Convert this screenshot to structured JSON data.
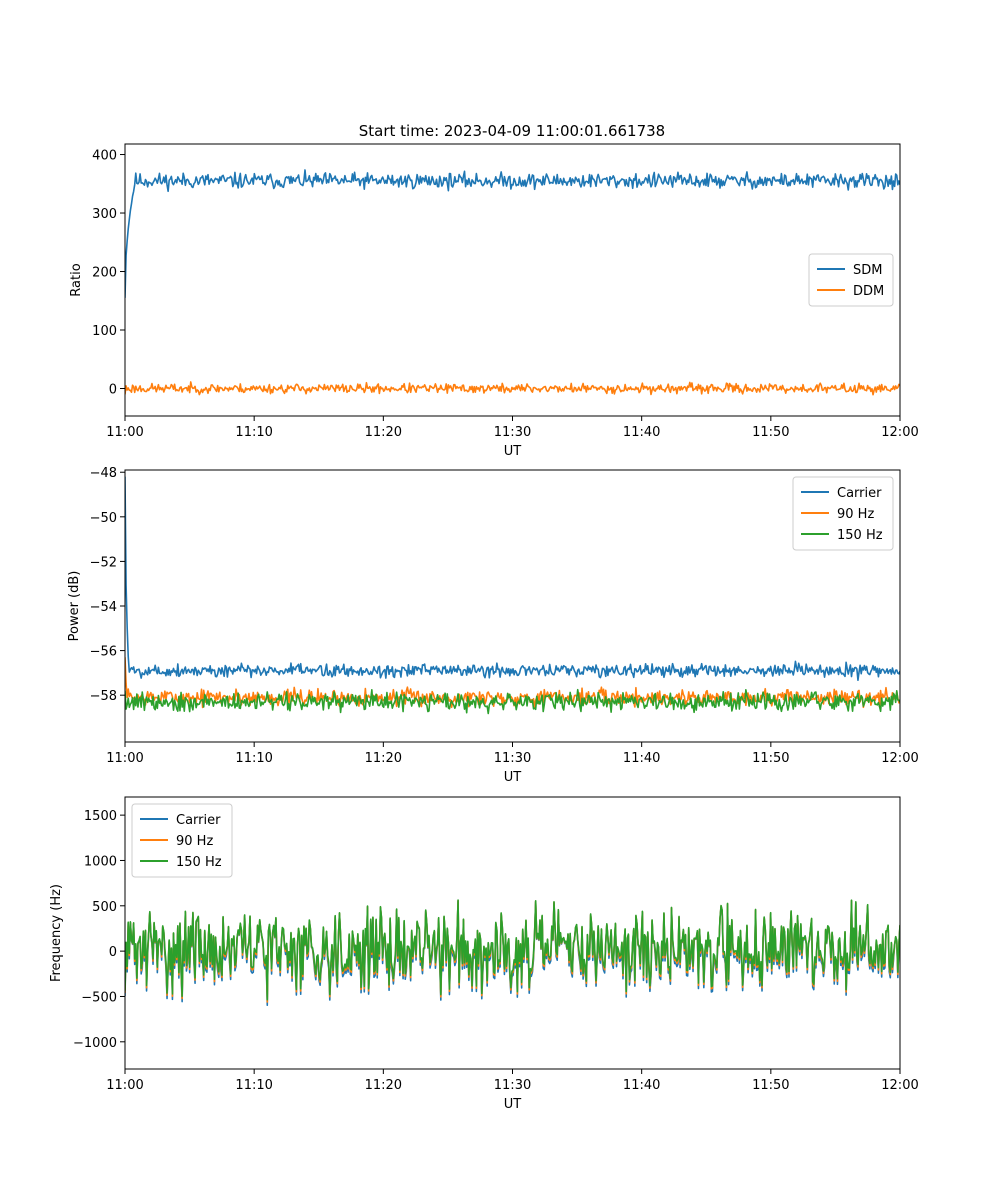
{
  "figure": {
    "title": "Start time: 2023-04-09 11:00:01.661738"
  },
  "colors": {
    "blue": "#1f77b4",
    "orange": "#ff7f0e",
    "green": "#2ca02c"
  },
  "chart_data": [
    {
      "type": "line",
      "title": "Start time: 2023-04-09 11:00:01.661738",
      "xlabel": "UT",
      "ylabel": "Ratio",
      "xlim": [
        "11:00",
        "12:00"
      ],
      "ylim": [
        -47,
        418
      ],
      "x_ticks": [
        "11:00",
        "11:10",
        "11:20",
        "11:30",
        "11:40",
        "11:50",
        "12:00"
      ],
      "y_ticks": [
        0,
        100,
        200,
        300,
        400
      ],
      "legend": "center-right",
      "series": [
        {
          "name": "SDM",
          "color": "#1f77b4",
          "start": 155,
          "settle_minutes": 0.8,
          "level": 355,
          "jitter": 13,
          "seed": 11
        },
        {
          "name": "DDM",
          "color": "#ff7f0e",
          "start": -10,
          "settle_minutes": 0,
          "level": 0,
          "jitter": 8,
          "seed": 23
        }
      ]
    },
    {
      "type": "line",
      "xlabel": "UT",
      "ylabel": "Power (dB)",
      "xlim": [
        "11:00",
        "12:00"
      ],
      "ylim": [
        -60.1,
        -47.9
      ],
      "x_ticks": [
        "11:00",
        "11:10",
        "11:20",
        "11:30",
        "11:40",
        "11:50",
        "12:00"
      ],
      "y_ticks": [
        -58,
        -56,
        -54,
        -52,
        -50,
        -48
      ],
      "legend": "top-right",
      "series": [
        {
          "name": "Carrier",
          "color": "#1f77b4",
          "start": -48.2,
          "settle_minutes": 0.3,
          "level": -56.9,
          "jitter": 0.3,
          "seed": 5
        },
        {
          "name": "90 Hz",
          "color": "#ff7f0e",
          "start": -56.3,
          "settle_minutes": 0.2,
          "level": -58.1,
          "jitter": 0.38,
          "seed": 7
        },
        {
          "name": "150 Hz",
          "color": "#2ca02c",
          "start": -57.8,
          "settle_minutes": 0,
          "level": -58.3,
          "jitter": 0.42,
          "seed": 9
        }
      ]
    },
    {
      "type": "line",
      "xlabel": "UT",
      "ylabel": "Frequency (Hz)",
      "xlim": [
        "11:00",
        "12:00"
      ],
      "ylim": [
        -1300,
        1700
      ],
      "x_ticks": [
        "11:00",
        "11:10",
        "11:20",
        "11:30",
        "11:40",
        "11:50",
        "12:00"
      ],
      "y_ticks": [
        -1000,
        -500,
        0,
        500,
        1000,
        1500
      ],
      "legend": "top-left",
      "series": [
        {
          "name": "Carrier",
          "color": "#1f77b4",
          "offset": -60,
          "level": 30,
          "jitter": 380,
          "seed": 31
        },
        {
          "name": "90 Hz",
          "color": "#ff7f0e",
          "offset": -25,
          "level": 30,
          "jitter": 380,
          "seed": 31
        },
        {
          "name": "150 Hz",
          "color": "#2ca02c",
          "offset": 0,
          "level": 30,
          "jitter": 380,
          "seed": 31
        }
      ]
    }
  ]
}
